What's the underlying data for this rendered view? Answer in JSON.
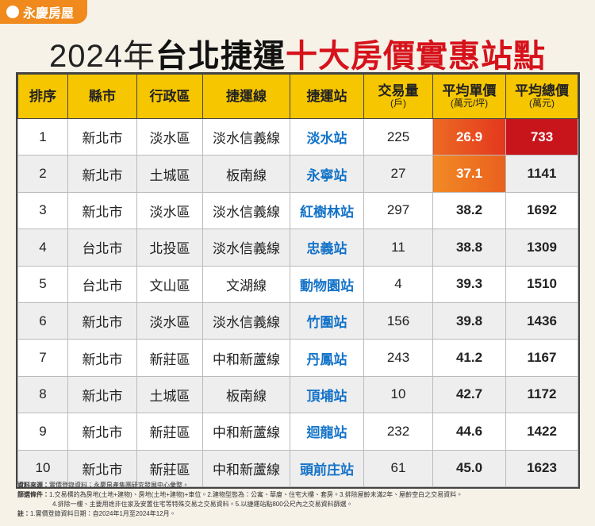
{
  "header": {
    "logo": "永慶房屋",
    "title": {
      "part1": "2024年",
      "part2": "台北捷運",
      "part3": "十大房價實惠站點"
    }
  },
  "table": {
    "columns": [
      {
        "label": "排序"
      },
      {
        "label": "縣市"
      },
      {
        "label": "行政區"
      },
      {
        "label": "捷運線"
      },
      {
        "label": "捷運站"
      },
      {
        "label": "交易量",
        "unit": "(戶)"
      },
      {
        "label": "平均單價",
        "unit": "(萬元/坪)"
      },
      {
        "label": "平均總價",
        "unit": "(萬元)"
      }
    ],
    "rows": [
      [
        "1",
        "新北市",
        "淡水區",
        "淡水信義線",
        "淡水站",
        "225",
        "26.9",
        "733"
      ],
      [
        "2",
        "新北市",
        "土城區",
        "板南線",
        "永寧站",
        "27",
        "37.1",
        "1141"
      ],
      [
        "3",
        "新北市",
        "淡水區",
        "淡水信義線",
        "紅樹林站",
        "297",
        "38.2",
        "1692"
      ],
      [
        "4",
        "台北市",
        "北投區",
        "淡水信義線",
        "忠義站",
        "11",
        "38.8",
        "1309"
      ],
      [
        "5",
        "台北市",
        "文山區",
        "文湖線",
        "動物園站",
        "4",
        "39.3",
        "1510"
      ],
      [
        "6",
        "新北市",
        "淡水區",
        "淡水信義線",
        "竹圍站",
        "156",
        "39.8",
        "1436"
      ],
      [
        "7",
        "新北市",
        "新莊區",
        "中和新蘆線",
        "丹鳳站",
        "243",
        "41.2",
        "1167"
      ],
      [
        "8",
        "新北市",
        "土城區",
        "板南線",
        "頂埔站",
        "10",
        "42.7",
        "1172"
      ],
      [
        "9",
        "新北市",
        "新莊區",
        "中和新蘆線",
        "迴龍站",
        "232",
        "44.6",
        "1422"
      ],
      [
        "10",
        "新北市",
        "新莊區",
        "中和新蘆線",
        "頭前庄站",
        "61",
        "45.0",
        "1623"
      ]
    ]
  },
  "footnotes": [
    {
      "label": "資料來源：",
      "text": "實價登錄資料；永慶房產集團研究發展中心彙整。"
    },
    {
      "label": "篩選條件：",
      "text": "1.交易標的為房地(土地+建物)、房地(土地+建物)+車位。2.建物型態為：公寓、華廈、住宅大樓、套房。3.排除屋齡未滿2年、屋齡空白之交易資料。"
    },
    {
      "text": "4.排除一樓、主要用途非住家及安置住宅等特殊交易之交易資料。5.以捷運站點800公尺內之交易資料篩選。"
    },
    {
      "label": "註：",
      "text": "1.實價登錄資料日期：自2024年1月至2024年12月。"
    }
  ]
}
